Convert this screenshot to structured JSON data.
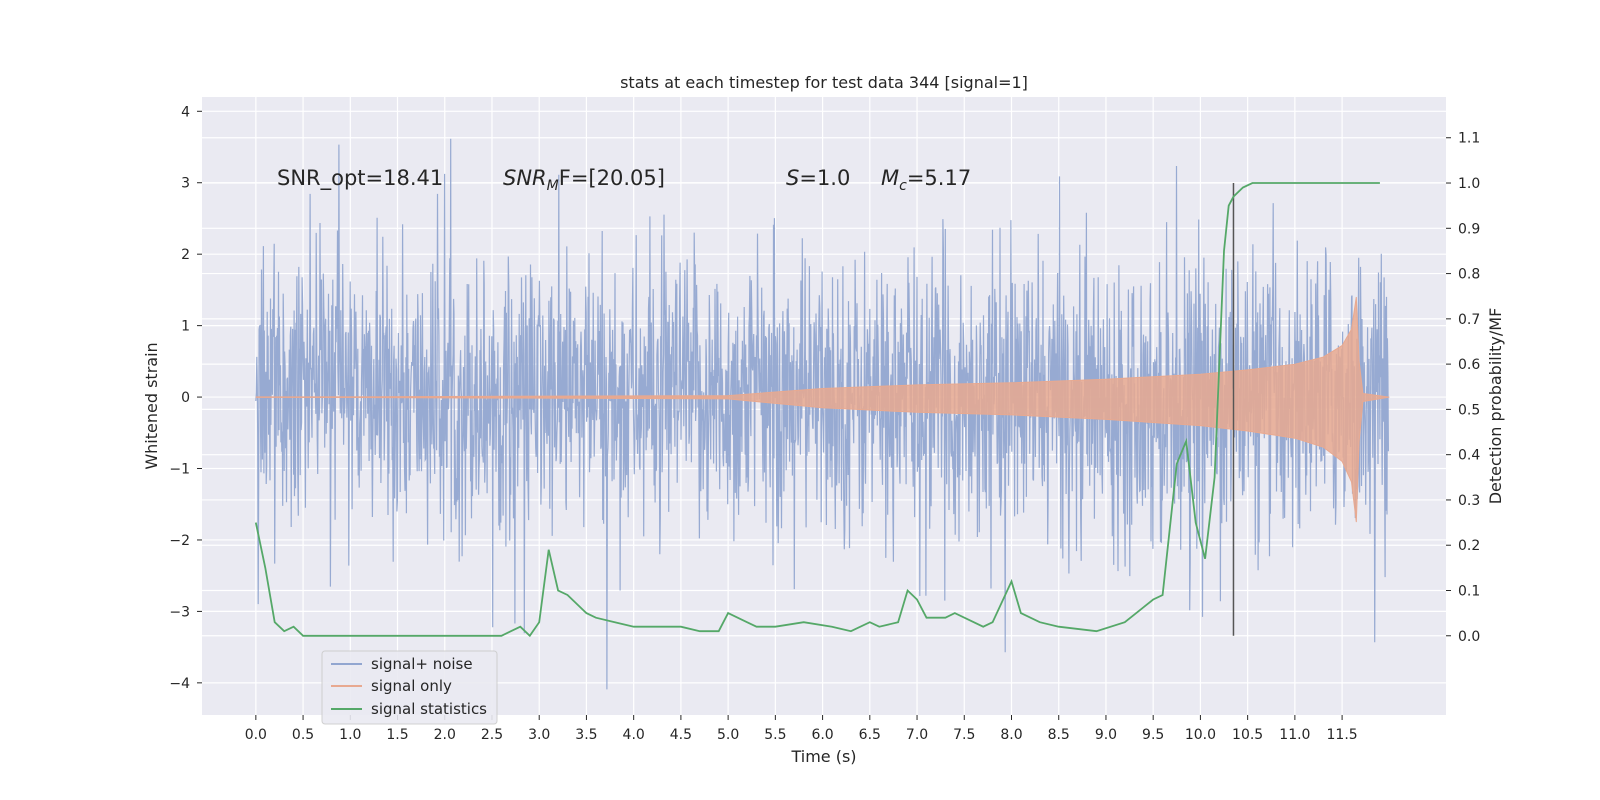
{
  "chart_data": {
    "type": "line",
    "title": "stats at each timestep for test data 344 [signal=1]",
    "xlabel": "Time (s)",
    "ylabel": "Whitened strain",
    "y2label": "Detection probability/MF",
    "xlim": [
      -0.57,
      12.6
    ],
    "ylim": [
      -4.45,
      4.2
    ],
    "y2lim": [
      -0.175,
      1.19
    ],
    "x_ticks": [
      "0.0",
      "0.5",
      "1.0",
      "1.5",
      "2.0",
      "2.5",
      "3.0",
      "3.5",
      "4.0",
      "4.5",
      "5.0",
      "5.5",
      "6.0",
      "6.5",
      "7.0",
      "7.5",
      "8.0",
      "8.5",
      "9.0",
      "9.5",
      "10.0",
      "10.5",
      "11.0",
      "11.5"
    ],
    "y_ticks": [
      4,
      3,
      2,
      1,
      0,
      -1,
      -2,
      -3,
      -4
    ],
    "y_tick_labels": [
      "4",
      "3",
      "2",
      "1",
      "0",
      "−1",
      "−2",
      "−3",
      "−4"
    ],
    "y2_ticks": [
      1.1,
      1.0,
      0.9,
      0.8,
      0.7,
      0.6,
      0.5,
      0.4,
      0.3,
      0.2,
      0.1,
      0.0
    ],
    "y2_tick_labels": [
      "1.1",
      "1.0",
      "0.9",
      "0.8",
      "0.7",
      "0.6",
      "0.5",
      "0.4",
      "0.3",
      "0.2",
      "0.1",
      "0.0"
    ],
    "annotations": {
      "snr_opt": "SNR_opt=18.41",
      "snr_mf_main": "SNR",
      "snr_mf_sub": "M",
      "snr_mf_rest": "F=[20.05]",
      "s_sym": "S",
      "s_val": "=1.0",
      "mc_sym": "M",
      "mc_sub": "c",
      "mc_val": "=5.17"
    },
    "legend_position": "lower-left",
    "grid": true,
    "vline_x": 10.35,
    "series": [
      {
        "name": "signal+ noise",
        "color": "#92a6d0",
        "axis": "left",
        "x_range": [
          0.0,
          11.99
        ],
        "envelope": "noise, amplitude about ±1.7 with peaks near ±4"
      },
      {
        "name": "signal only",
        "color": "#e8a990",
        "axis": "left",
        "x": [
          0.0,
          5.0,
          6.0,
          7.0,
          8.0,
          9.0,
          10.0,
          10.5,
          11.0,
          11.3,
          11.5,
          11.6,
          11.65,
          11.68,
          11.72,
          12.0
        ],
        "amplitude": [
          0.0,
          0.02,
          0.12,
          0.17,
          0.2,
          0.25,
          0.32,
          0.38,
          0.46,
          0.56,
          0.72,
          0.95,
          1.4,
          0.5,
          0.05,
          0.0
        ]
      },
      {
        "name": "signal statistics",
        "color": "#55a868",
        "axis": "right",
        "x": [
          0.0,
          0.1,
          0.2,
          0.3,
          0.4,
          0.5,
          0.7,
          1.0,
          1.3,
          1.6,
          2.0,
          2.4,
          2.6,
          2.7,
          2.8,
          2.9,
          3.0,
          3.1,
          3.2,
          3.3,
          3.4,
          3.5,
          3.6,
          3.8,
          4.0,
          4.3,
          4.5,
          4.7,
          4.9,
          5.0,
          5.2,
          5.3,
          5.5,
          5.8,
          6.1,
          6.3,
          6.5,
          6.6,
          6.8,
          6.9,
          7.0,
          7.1,
          7.3,
          7.4,
          7.7,
          7.8,
          8.0,
          8.1,
          8.3,
          8.5,
          8.9,
          9.2,
          9.5,
          9.6,
          9.75,
          9.85,
          9.95,
          10.05,
          10.15,
          10.25,
          10.3,
          10.35,
          10.45,
          10.55,
          10.7,
          11.0,
          11.5,
          11.9
        ],
        "y": [
          0.25,
          0.15,
          0.03,
          0.01,
          0.02,
          0.0,
          0.0,
          0.0,
          0.0,
          0.0,
          0.0,
          0.0,
          0.0,
          0.01,
          0.02,
          0.0,
          0.03,
          0.19,
          0.1,
          0.09,
          0.07,
          0.05,
          0.04,
          0.03,
          0.02,
          0.02,
          0.02,
          0.01,
          0.01,
          0.05,
          0.03,
          0.02,
          0.02,
          0.03,
          0.02,
          0.01,
          0.03,
          0.02,
          0.03,
          0.1,
          0.08,
          0.04,
          0.04,
          0.05,
          0.02,
          0.03,
          0.12,
          0.05,
          0.03,
          0.02,
          0.01,
          0.03,
          0.08,
          0.09,
          0.38,
          0.43,
          0.25,
          0.17,
          0.35,
          0.85,
          0.95,
          0.97,
          0.99,
          1.0,
          1.0,
          1.0,
          1.0,
          1.0
        ]
      }
    ]
  }
}
